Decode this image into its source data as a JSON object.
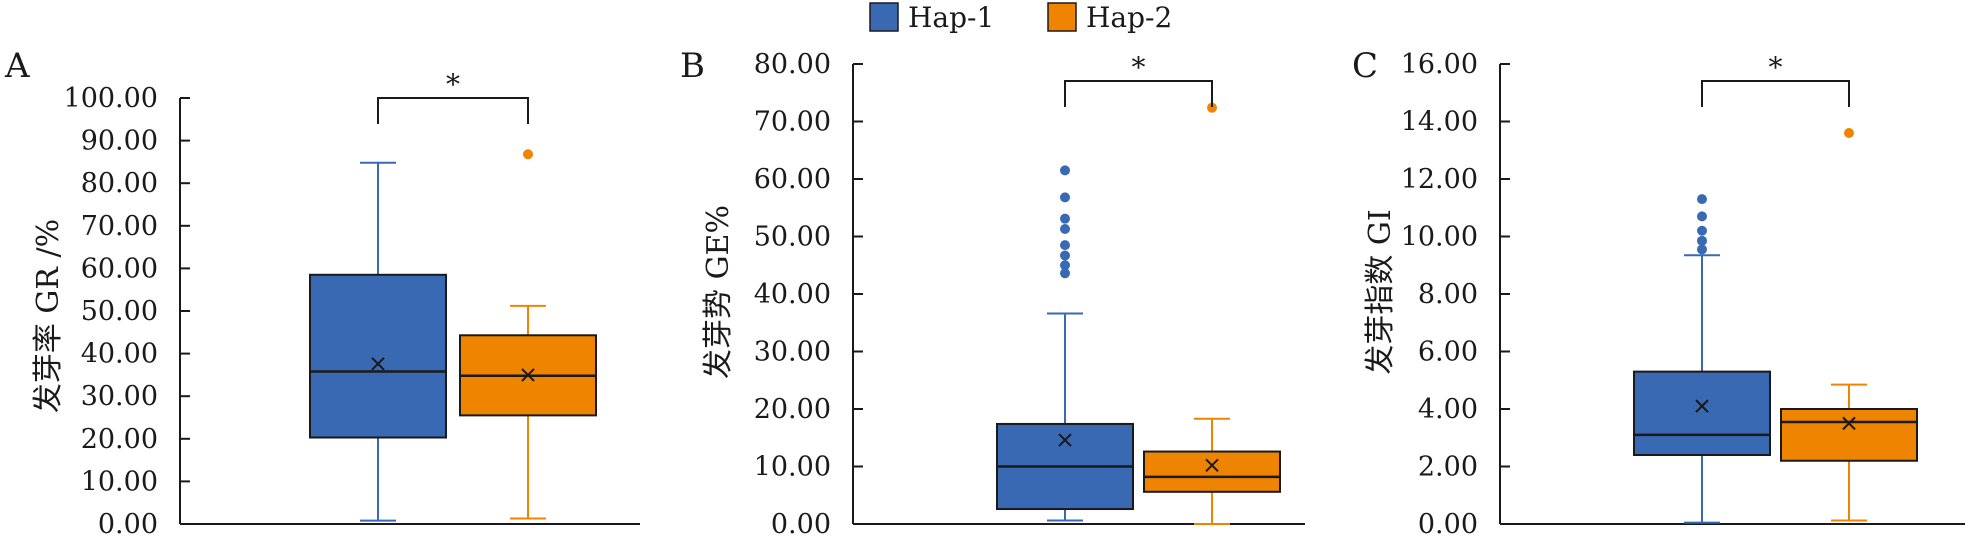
{
  "legend": [
    {
      "label": "Hap-1",
      "color": "#3A69B3"
    },
    {
      "label": "Hap-2",
      "color": "#EF8400"
    }
  ],
  "chart_data": [
    {
      "type": "box",
      "panel": "A",
      "ylabel": "发芽率 GR /%",
      "ylim": [
        0,
        100
      ],
      "yticks": [
        "0.00",
        "10.00",
        "20.00",
        "30.00",
        "40.00",
        "50.00",
        "60.00",
        "70.00",
        "80.00",
        "90.00",
        "100.00"
      ],
      "significance": "*",
      "series": [
        {
          "name": "Hap-1",
          "color": "#3A69B3",
          "min": 0.8,
          "q1": 20.3,
          "median": 35.8,
          "q3": 58.5,
          "max": 84.8,
          "mean": 37.6,
          "outliers": []
        },
        {
          "name": "Hap-2",
          "color": "#EF8400",
          "min": 1.3,
          "q1": 25.5,
          "median": 34.8,
          "q3": 44.3,
          "max": 51.2,
          "mean": 35.0,
          "outliers": [
            86.8
          ]
        }
      ]
    },
    {
      "type": "box",
      "panel": "B",
      "ylabel": "发芽势 GE%",
      "ylim": [
        0,
        80
      ],
      "yticks": [
        "0.00",
        "10.00",
        "20.00",
        "30.00",
        "40.00",
        "50.00",
        "60.00",
        "70.00",
        "80.00"
      ],
      "significance": "*",
      "series": [
        {
          "name": "Hap-1",
          "color": "#3A69B3",
          "min": 0.6,
          "q1": 2.6,
          "median": 10.0,
          "q3": 17.4,
          "max": 36.6,
          "mean": 14.6,
          "outliers": [
            43.6,
            45.0,
            46.7,
            48.5,
            51.3,
            53.1,
            56.8,
            61.5
          ]
        },
        {
          "name": "Hap-2",
          "color": "#EF8400",
          "min": 0.0,
          "q1": 5.6,
          "median": 8.2,
          "q3": 12.6,
          "max": 18.3,
          "mean": 10.2,
          "outliers": [
            72.4
          ]
        }
      ]
    },
    {
      "type": "box",
      "panel": "C",
      "ylabel": "发芽指数 GI",
      "ylim": [
        0,
        16
      ],
      "yticks": [
        "0.00",
        "2.00",
        "4.00",
        "6.00",
        "8.00",
        "10.00",
        "12.00",
        "14.00",
        "16.00"
      ],
      "significance": "*",
      "series": [
        {
          "name": "Hap-1",
          "color": "#3A69B3",
          "min": 0.05,
          "q1": 2.4,
          "median": 3.1,
          "q3": 5.3,
          "max": 9.35,
          "mean": 4.1,
          "outliers": [
            9.55,
            9.85,
            10.2,
            10.7,
            11.3
          ]
        },
        {
          "name": "Hap-2",
          "color": "#EF8400",
          "min": 0.12,
          "q1": 2.2,
          "median": 3.55,
          "q3": 4.0,
          "max": 4.85,
          "mean": 3.5,
          "outliers": [
            13.6
          ]
        }
      ]
    }
  ]
}
